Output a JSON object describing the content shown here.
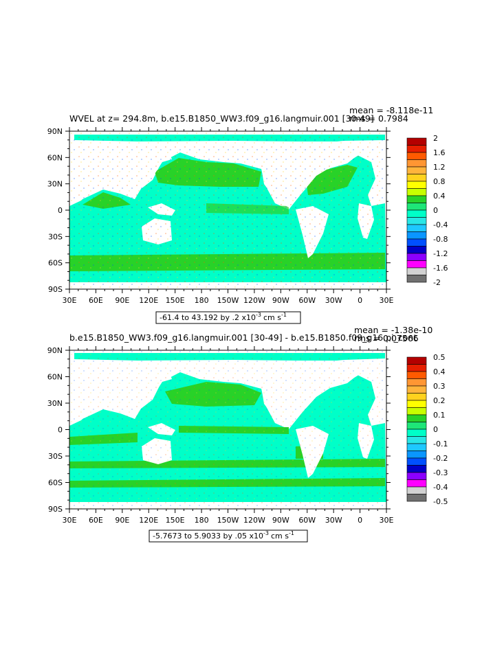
{
  "panels": [
    {
      "title_left": "WVEL at z= 294.8m, b.e15.B1850_WW3.f09_g16.langmuir.001 [30-49]",
      "mean_text": "mean = -8.118e-11",
      "rms_text": "rms = 0.7984",
      "range_text": "-61.4 to 43.192 by .2 x10",
      "range_exp": "-3",
      "range_unit": "cm s",
      "range_unit_exp": "-1",
      "colorbar": {
        "labels": [
          "2",
          "1.6",
          "1.2",
          "0.8",
          "0.4",
          "0",
          "-0.4",
          "-0.8",
          "-1.2",
          "-1.6",
          "-2"
        ],
        "colors": [
          "#b40000",
          "#e61e00",
          "#ff5a00",
          "#ff9633",
          "#ffb43c",
          "#ffd21e",
          "#ffff00",
          "#c8ff00",
          "#28d228",
          "#1ee678",
          "#00ffc8",
          "#28e6e6",
          "#1ec8ff",
          "#0a96ff",
          "#0050ff",
          "#0000c8",
          "#8c00ff",
          "#ff00ff",
          "#d2d2d2",
          "#707070"
        ]
      }
    },
    {
      "title_left": "b.e15.B1850_WW3.f09_g16.langmuir.001 [30-49] - b.e15.B1850.f09_g16.pi_cont",
      "mean_text": "mean = -1.38e-10",
      "rms_text": "rms = 0.07566",
      "range_text": "-5.7673 to 5.9033 by .05 x10",
      "range_exp": "-3",
      "range_unit": "cm s",
      "range_unit_exp": "-1",
      "colorbar": {
        "labels": [
          "0.5",
          "0.4",
          "0.3",
          "0.2",
          "0.1",
          "0",
          "-0.1",
          "-0.2",
          "-0.3",
          "-0.4",
          "-0.5"
        ],
        "colors": [
          "#b40000",
          "#e61e00",
          "#ff5a00",
          "#ff9633",
          "#ffb43c",
          "#ffd21e",
          "#ffff00",
          "#c8ff00",
          "#28d228",
          "#1ee678",
          "#00ffc8",
          "#28e6e6",
          "#1ec8ff",
          "#0a96ff",
          "#0050ff",
          "#0000c8",
          "#8c00ff",
          "#ff00ff",
          "#d2d2d2",
          "#707070"
        ]
      }
    }
  ],
  "axes": {
    "x_ticks": [
      "30E",
      "60E",
      "90E",
      "120E",
      "150E",
      "180",
      "150W",
      "120W",
      "90W",
      "60W",
      "30W",
      "0",
      "30E"
    ],
    "y_ticks": [
      "90N",
      "60N",
      "30N",
      "0",
      "30S",
      "60S",
      "90S"
    ]
  },
  "colors": {
    "ocean_main": "#00ffc8",
    "ocean_alt": "#28d228",
    "land": "#ffffff"
  },
  "chart_data": [
    {
      "type": "heatmap",
      "title": "WVEL at z= 294.8m, b.e15.B1850_WW3.f09_g16.langmuir.001 [30-49]",
      "subtitle": "mean = -8.118e-11 rms = 0.7984",
      "xlim": [
        30,
        390
      ],
      "ylim": [
        -90,
        90
      ],
      "colorbar_levels": [
        -2,
        -1.8,
        -1.6,
        -1.4,
        -1.2,
        -1,
        -0.8,
        -0.6,
        -0.4,
        -0.2,
        0,
        0.2,
        0.4,
        0.6,
        0.8,
        1,
        1.2,
        1.4,
        1.6,
        1.8,
        2
      ],
      "data_min": -61.4,
      "data_max": 43.192,
      "contour_interval": 0.2,
      "units": "x10^-3 cm s^-1"
    },
    {
      "type": "heatmap",
      "title": "b.e15.B1850_WW3.f09_g16.langmuir.001 [30-49] - b.e15.B1850.f09_g16.pi_cont",
      "subtitle": "mean = -1.38e-10 rms = 0.07566",
      "xlim": [
        30,
        390
      ],
      "ylim": [
        -90,
        90
      ],
      "colorbar_levels": [
        -0.5,
        -0.45,
        -0.4,
        -0.35,
        -0.3,
        -0.25,
        -0.2,
        -0.15,
        -0.1,
        -0.05,
        0,
        0.05,
        0.1,
        0.15,
        0.2,
        0.25,
        0.3,
        0.35,
        0.4,
        0.45,
        0.5
      ],
      "data_min": -5.7673,
      "data_max": 5.9033,
      "contour_interval": 0.05,
      "units": "x10^-3 cm s^-1"
    }
  ]
}
